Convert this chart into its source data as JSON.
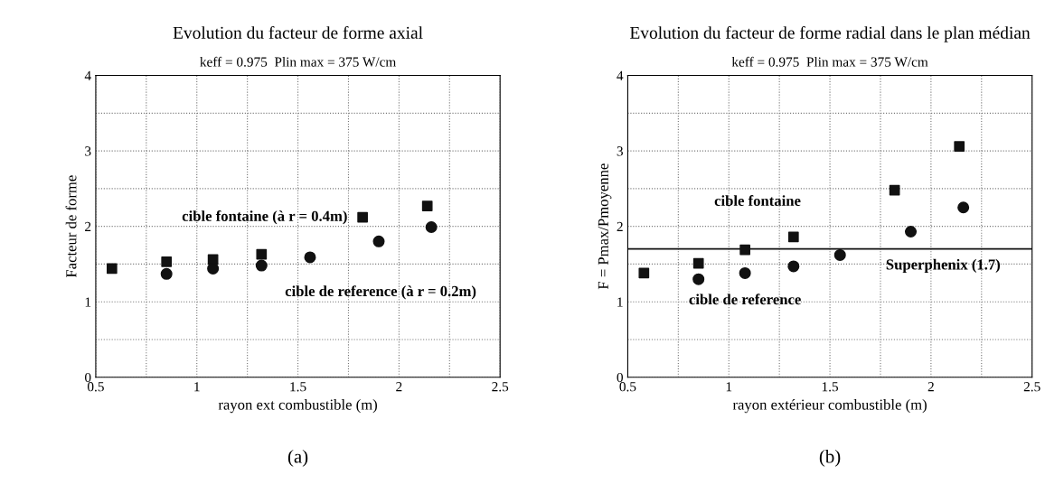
{
  "chart_data": [
    {
      "type": "scatter",
      "title": "Evolution du facteur de forme axial",
      "subtitle": "keff = 0.975  Plin max = 375 W/cm",
      "xlabel": "rayon ext combustible (m)",
      "ylabel": "Facteur de forme",
      "xlim": [
        0.5,
        2.5
      ],
      "xticks": [
        0.5,
        1,
        1.5,
        2,
        2.5
      ],
      "ylim": [
        0,
        4
      ],
      "yticks": [
        0,
        1,
        2,
        3,
        4
      ],
      "grid": true,
      "series": [
        {
          "name": "cible fontaine (à r = 0.4m)",
          "color": "#111111",
          "marker": "square",
          "x": [
            0.58,
            0.85,
            1.08,
            1.32,
            1.82,
            2.14
          ],
          "values": [
            1.44,
            1.53,
            1.56,
            1.63,
            2.12,
            2.27
          ]
        },
        {
          "name": "cible de reference (à r = 0.2m)",
          "color": "#111111",
          "marker": "circle",
          "x": [
            0.85,
            1.08,
            1.32,
            1.56,
            1.9,
            2.16
          ],
          "values": [
            1.37,
            1.44,
            1.48,
            1.59,
            1.8,
            1.99
          ]
        }
      ],
      "annotations": [
        "(a)"
      ]
    },
    {
      "type": "scatter",
      "title": "Evolution du facteur de forme radial dans le plan médian",
      "subtitle": "keff = 0.975  Plin max = 375 W/cm",
      "xlabel": "rayon extérieur combustible (m)",
      "ylabel": "F = Pmax/Pmoyenne",
      "xlim": [
        0.5,
        2.5
      ],
      "xticks": [
        0.5,
        1,
        1.5,
        2,
        2.5
      ],
      "ylim": [
        0,
        4
      ],
      "yticks": [
        0,
        1,
        2,
        3,
        4
      ],
      "grid": true,
      "series": [
        {
          "name": "cible fontaine",
          "color": "#111111",
          "marker": "square",
          "x": [
            0.58,
            0.85,
            1.08,
            1.32,
            1.82,
            2.14
          ],
          "values": [
            1.38,
            1.51,
            1.69,
            1.86,
            2.48,
            3.06
          ]
        },
        {
          "name": "cible de reference",
          "color": "#111111",
          "marker": "circle",
          "x": [
            0.85,
            1.08,
            1.32,
            1.55,
            1.9,
            2.16
          ],
          "values": [
            1.3,
            1.38,
            1.47,
            1.62,
            1.93,
            2.25
          ]
        }
      ],
      "ref_lines": [
        {
          "axis": "y",
          "value": 1.7,
          "label": "Superphenix (1.7)",
          "color": "#111111"
        }
      ],
      "annotations": [
        "(b)"
      ]
    }
  ]
}
